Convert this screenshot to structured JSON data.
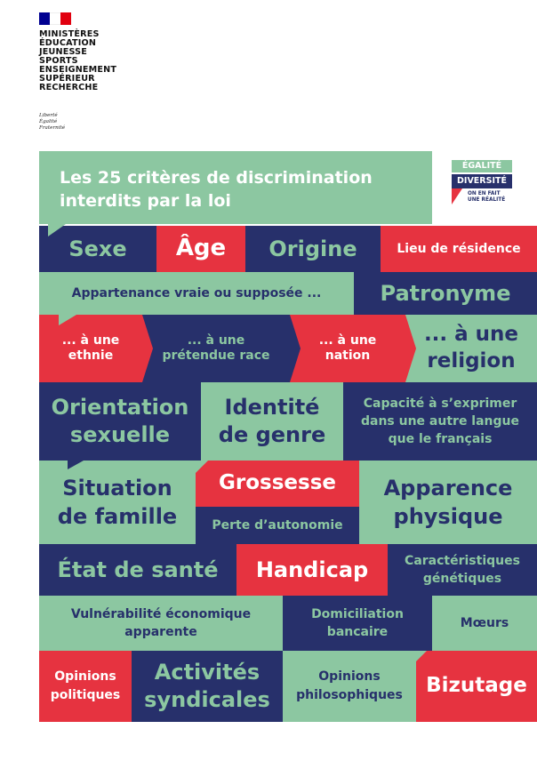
{
  "ministry": {
    "lines": [
      "MINISTÈRES",
      "ÉDUCATION",
      "JEUNESSE",
      "SPORTS",
      "ENSEIGNEMENT",
      "SUPÉRIEUR",
      "RECHERCHE"
    ],
    "motto": [
      "Liberté",
      "Égalité",
      "Fraternité"
    ],
    "flag_colors": [
      "#000091",
      "#ffffff",
      "#e1000f"
    ]
  },
  "header": {
    "title_line1": "Les 25 critères de discrimination",
    "title_line2": "interdits par la loi"
  },
  "badge": {
    "line1": "ÉGALITÉ",
    "line2": "DIVERSITÉ",
    "tag1": "ON EN FAIT",
    "tag2": "UNE RÉALITÉ"
  },
  "colors": {
    "green": "#8cc7a1",
    "navy": "#27306b",
    "red": "#e63340"
  },
  "criteria": {
    "sexe": "Sexe",
    "age": "Âge",
    "origine": "Origine",
    "lieu": "Lieu de résidence",
    "appartenance": "Appartenance vraie ou supposée ...",
    "patronyme": "Patronyme",
    "ethnie": [
      "... à une",
      "ethnie"
    ],
    "race": [
      "... à une",
      "prétendue race"
    ],
    "nation": [
      "... à une",
      "nation"
    ],
    "religion": [
      "... à une",
      "religion"
    ],
    "orientation": [
      "Orientation",
      "sexuelle"
    ],
    "identite": [
      "Identité",
      "de genre"
    ],
    "langue": [
      "Capacité à s’exprimer",
      "dans une autre langue",
      "que le français"
    ],
    "situation": [
      "Situation",
      "de famille"
    ],
    "grossesse": "Grossesse",
    "autonomie": "Perte d’autonomie",
    "apparence": [
      "Apparence",
      "physique"
    ],
    "sante": "État de santé",
    "handicap": "Handicap",
    "genetique": [
      "Caractéristiques",
      "génétiques"
    ],
    "vulnerabilite": [
      "Vulnérabilité économique",
      "apparente"
    ],
    "domiciliation": [
      "Domiciliation",
      "bancaire"
    ],
    "moeurs": "Mœurs",
    "politiques": [
      "Opinions",
      "politiques"
    ],
    "syndicales": [
      "Activités",
      "syndicales"
    ],
    "philosophiques": [
      "Opinions",
      "philosophiques"
    ],
    "bizutage": "Bizutage"
  }
}
